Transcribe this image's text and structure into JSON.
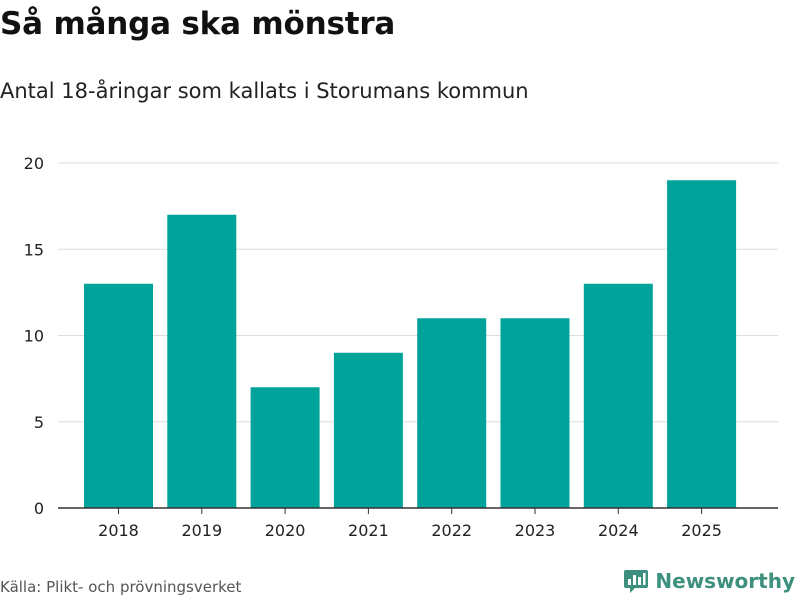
{
  "chart_data": {
    "type": "bar",
    "title": "Så många ska mönstra",
    "subtitle": "Antal 18-åringar som kallats i Storumans kommun",
    "categories": [
      "2018",
      "2019",
      "2020",
      "2021",
      "2022",
      "2023",
      "2024",
      "2025"
    ],
    "values": [
      13,
      17,
      7,
      9,
      11,
      11,
      13,
      19
    ],
    "xlabel": "",
    "ylabel": "",
    "ylim": [
      0,
      20
    ],
    "yticks": [
      0,
      5,
      10,
      15,
      20
    ],
    "grid": true,
    "bar_color": "#00a39a",
    "grid_color": "#dddddd",
    "axis_color": "#333333"
  },
  "footer": {
    "source": "Källa: Plikt- och prövningsverket",
    "brand": "Newsworthy",
    "brand_color": "#3d8f7e",
    "logo_icon": "newsworthy-logo-icon"
  }
}
